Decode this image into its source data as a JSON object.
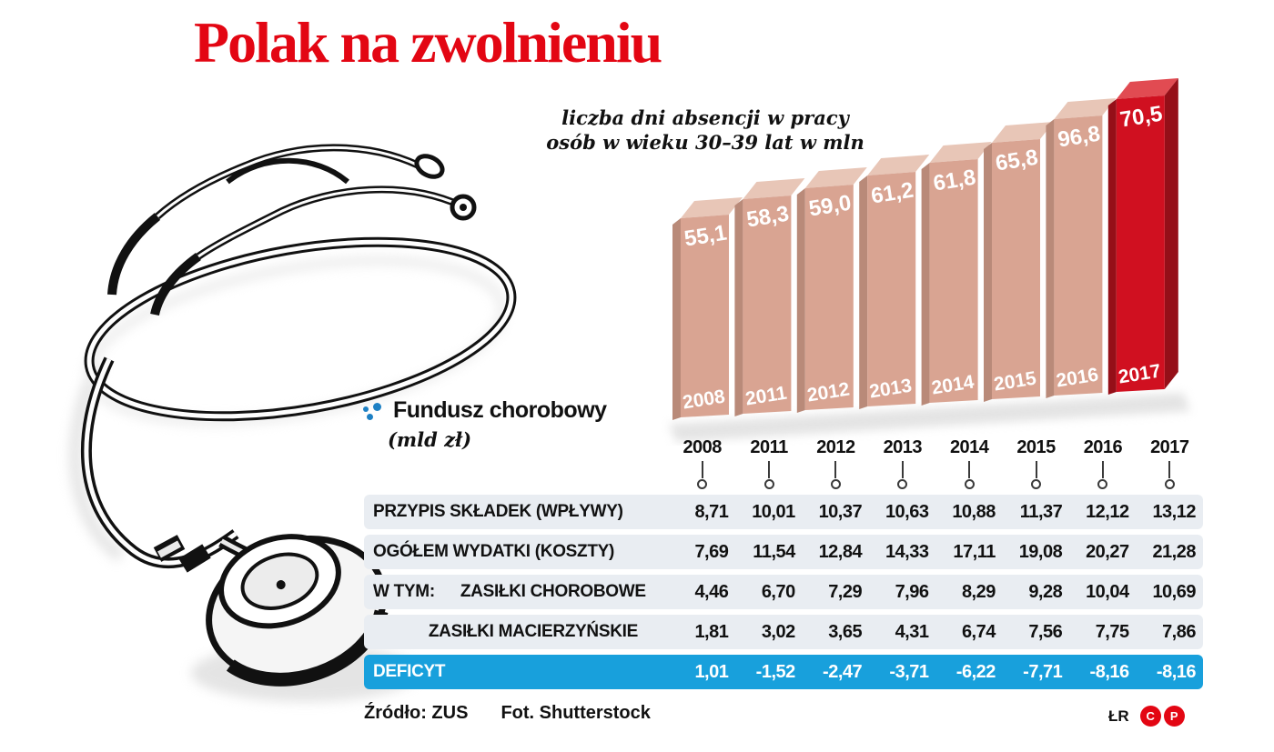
{
  "title": "Polak na zwolnieniu",
  "chart": {
    "subtitle_line1": "liczba dni absencji w pracy",
    "subtitle_line2": "osób w wieku 30–39 lat w mln"
  },
  "chart_data": {
    "type": "bar",
    "title": "liczba dni absencji w pracy osób w wieku 30–39 lat w mln",
    "categories": [
      "2008",
      "2011",
      "2012",
      "2013",
      "2014",
      "2015",
      "2016",
      "2017"
    ],
    "values": [
      55.1,
      58.3,
      59.0,
      61.2,
      61.8,
      65.8,
      96.8,
      70.5
    ],
    "value_labels": [
      "55,1",
      "58,3",
      "59,0",
      "61,2",
      "61,8",
      "65,8",
      "96,8",
      "70,5"
    ],
    "highlight_category": "2017",
    "grid": false,
    "legend_position": "none"
  },
  "legend": {
    "title": "Fundusz chorobowy",
    "unit": "(mld zł)"
  },
  "table": {
    "years": [
      "2008",
      "2011",
      "2012",
      "2013",
      "2014",
      "2015",
      "2016",
      "2017"
    ],
    "rows": [
      {
        "prefix": "",
        "label": "PRZYPIS SKŁADEK (WPŁYWY)",
        "label_align": "left",
        "highlight": false,
        "values": [
          "8,71",
          "10,01",
          "10,37",
          "10,63",
          "10,88",
          "11,37",
          "12,12",
          "13,12"
        ]
      },
      {
        "prefix": "",
        "label": "OGÓŁEM WYDATKI (KOSZTY)",
        "label_align": "left",
        "highlight": false,
        "values": [
          "7,69",
          "11,54",
          "12,84",
          "14,33",
          "17,11",
          "19,08",
          "20,27",
          "21,28"
        ]
      },
      {
        "prefix": "W TYM:",
        "label": "ZASIŁKI CHOROBOWE",
        "label_align": "left",
        "highlight": false,
        "values": [
          "4,46",
          "6,70",
          "7,29",
          "7,96",
          "8,29",
          "9,28",
          "10,04",
          "10,69"
        ]
      },
      {
        "prefix": "",
        "label": "ZASIŁKI MACIERZYŃSKIE",
        "label_align": "right",
        "highlight": false,
        "values": [
          "1,81",
          "3,02",
          "3,65",
          "4,31",
          "6,74",
          "7,56",
          "7,75",
          "7,86"
        ]
      },
      {
        "prefix": "",
        "label": "DEFICYT",
        "label_align": "left",
        "highlight": true,
        "values": [
          "1,01",
          "-1,52",
          "-2,47",
          "-3,71",
          "-6,22",
          "-7,71",
          "-8,16",
          "-8,16"
        ]
      }
    ]
  },
  "footer": {
    "source": "Źródło: ZUS",
    "photo_credit": "Fot. Shutterstock",
    "author_initials": "ŁR",
    "badges": [
      "C",
      "P"
    ]
  },
  "colors": {
    "title_red": "#e30613",
    "bar_front": "#d9a492",
    "bar_top": "#e8c6b7",
    "bar_side": "#b98a79",
    "bar_red_front": "#d01020",
    "bar_red_top": "#e14b52",
    "bar_red_side": "#950f18",
    "deficit_blue": "#18a0dc",
    "row_bg": "#e9edf2",
    "bullet_blue": "#1d80c4",
    "badge_red": "#e30613",
    "bar_label_white": "#ffffff"
  }
}
